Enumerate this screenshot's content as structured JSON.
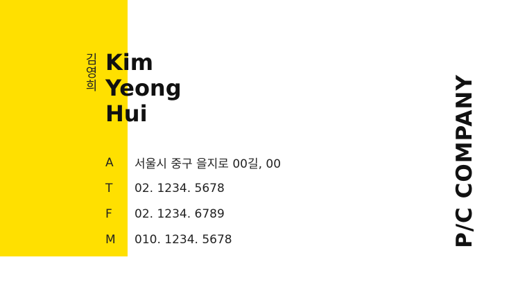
{
  "card": {
    "korean_name": "김영희",
    "english_name": [
      "Kim",
      "Yeong",
      "Hui"
    ],
    "company": "P/C COMPANY",
    "contacts": [
      {
        "label": "A",
        "value": "서울시 중구 을지로 00길, 00"
      },
      {
        "label": "T",
        "value": "02. 1234. 5678"
      },
      {
        "label": "F",
        "value": "02. 1234. 6789"
      },
      {
        "label": "M",
        "value": "010. 1234. 5678"
      }
    ],
    "colors": {
      "accent": "#FFE000",
      "text": "#111111",
      "background": "#FFFFFF"
    }
  }
}
